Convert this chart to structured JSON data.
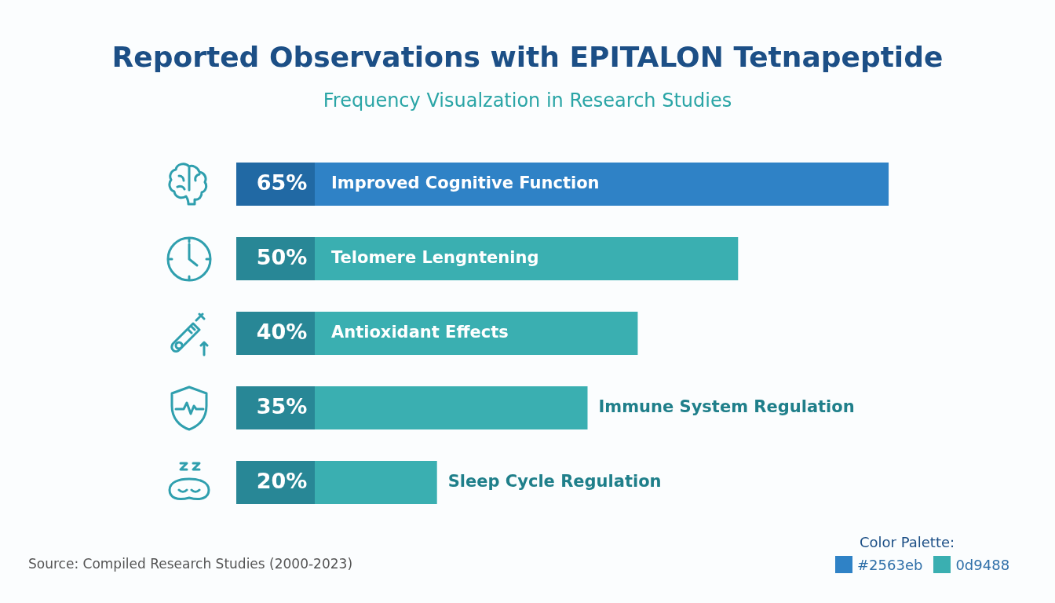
{
  "chart_data": {
    "type": "bar",
    "orientation": "horizontal",
    "title": "Reported Observations with EPITALON Tetnapeptide",
    "subtitle": "Frequency Visualzation in Research Studies",
    "categories": [
      "Improved Cognitive Function",
      "Telomere Lengntening",
      "Antioxidant Effects",
      "Immune System Regulation",
      "Sleep Cycle Regulation"
    ],
    "values": [
      65,
      50,
      40,
      35,
      20
    ],
    "value_labels": [
      "65%",
      "50%",
      "40%",
      "35%",
      "20%"
    ],
    "colors": [
      "#2f82c6",
      "#3aafb1",
      "#3aafb1",
      "#3aafb1",
      "#3aafb1"
    ],
    "annotations": [
      "Source: Compiled Research Studies (2000-2023)",
      "Color Palette:",
      "#2563eb",
      "0d9488"
    ]
  }
}
